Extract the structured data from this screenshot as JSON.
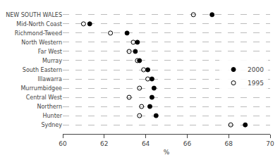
{
  "chart_data": {
    "type": "scatter",
    "categories": [
      "NEW SOUTH WALES",
      "Mid-North Coast",
      "Richmond-Tweed",
      "North Western",
      "Far West",
      "Murray",
      "South Eastern",
      "Illawarra",
      "Murrumbidgee",
      "Central West",
      "Northern",
      "Hunter",
      "Sydney"
    ],
    "series": [
      {
        "name": "2000",
        "color": "black",
        "marker": "filled",
        "values": [
          67.2,
          61.3,
          63.1,
          63.6,
          63.5,
          63.7,
          64.1,
          64.3,
          64.4,
          64.3,
          64.2,
          64.5,
          68.8
        ]
      },
      {
        "name": "1995",
        "color": "black",
        "marker": "open",
        "values": [
          66.3,
          61.0,
          62.3,
          63.4,
          63.2,
          63.6,
          63.9,
          64.1,
          63.7,
          63.2,
          63.8,
          63.7,
          68.1
        ]
      }
    ],
    "xlabel": "%",
    "xlim": [
      60,
      70
    ],
    "xticks": [
      60,
      62,
      64,
      66,
      68,
      70
    ],
    "grid": true,
    "legend": "right"
  }
}
